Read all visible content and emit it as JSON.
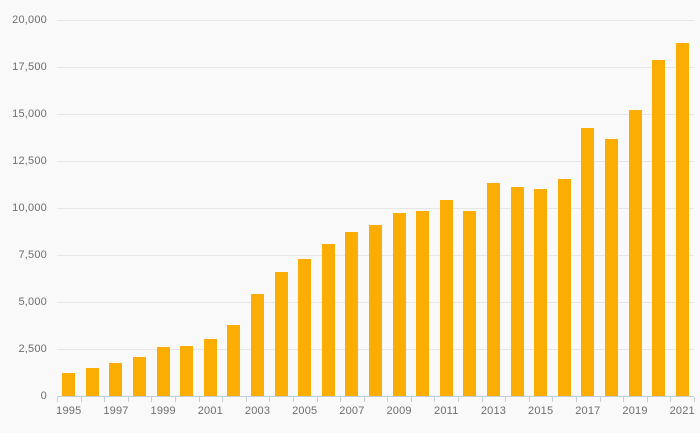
{
  "chart_data": {
    "type": "bar",
    "title": "",
    "xlabel": "",
    "ylabel": "",
    "categories": [
      "1995",
      "1996",
      "1997",
      "1998",
      "1999",
      "2000",
      "2001",
      "2002",
      "2003",
      "2004",
      "2005",
      "2006",
      "2007",
      "2008",
      "2009",
      "2010",
      "2011",
      "2012",
      "2013",
      "2014",
      "2015",
      "2016",
      "2017",
      "2018",
      "2019",
      "2020",
      "2021"
    ],
    "values": [
      1250,
      1500,
      1750,
      2100,
      2600,
      2650,
      3050,
      3800,
      5400,
      6600,
      7300,
      8100,
      8700,
      9100,
      9750,
      9850,
      10450,
      9850,
      11350,
      11100,
      11000,
      11550,
      14250,
      13650,
      15200,
      17850,
      18800
    ],
    "ylim": [
      0,
      20000
    ],
    "ytick_values": [
      0,
      2500,
      5000,
      7500,
      10000,
      12500,
      15000,
      17500,
      20000
    ],
    "ytick_labels": [
      "0",
      "2,500",
      "5,000",
      "7,500",
      "10,000",
      "12,500",
      "15,000",
      "17,500",
      "20,000"
    ],
    "xtick_labels": [
      "1995",
      "1997",
      "1999",
      "2001",
      "2003",
      "2005",
      "2007",
      "2009",
      "2011",
      "2013",
      "2015",
      "2017",
      "2019",
      "2021"
    ],
    "grid": true,
    "legend": "none",
    "colors": {
      "bar": "#fbad03",
      "gridline": "#e6e6e6",
      "axis": "#c3cedd",
      "label_text": "#6e6e6e",
      "background": "#f9f9f9"
    }
  }
}
